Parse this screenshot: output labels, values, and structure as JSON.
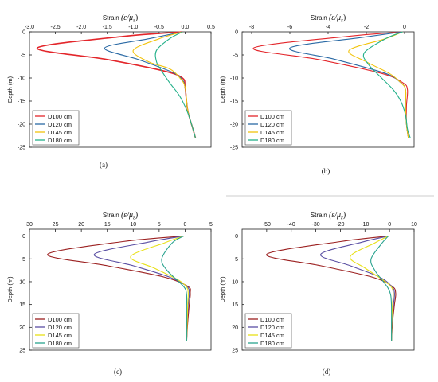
{
  "figure": {
    "captions": [
      "(a)",
      "(b)",
      "(c)",
      "(d)"
    ]
  },
  "chart_data": [
    {
      "type": "line",
      "panel_caption": "(a)",
      "xlabel": "Strain",
      "xlabel_math": "(ε/μ",
      "xlabel_math_sub": "ε",
      "xlabel_math_close": ")",
      "ylabel": "Depth (m)",
      "xlim": [
        -3.0,
        0.5
      ],
      "ylim": [
        0,
        -25
      ],
      "xticks": [
        "-3.0",
        "-2.5",
        "-2.0",
        "-1.5",
        "-1.0",
        "-0.5",
        "0.0",
        "0.5"
      ],
      "xtick_values": [
        -3.0,
        -2.5,
        -2.0,
        -1.5,
        -1.0,
        -0.5,
        0.0,
        0.5
      ],
      "yticks": [
        "0",
        "-5",
        "-10",
        "-15",
        "-20",
        "-25"
      ],
      "ytick_values": [
        0,
        -5,
        -10,
        -15,
        -20,
        -25
      ],
      "grid": false,
      "legend_position": "bottom-left",
      "series": [
        {
          "name": "D100 cm",
          "color": "#e3262b",
          "x": [
            -0.05,
            -1.2,
            -2.85,
            -1.5,
            -0.4,
            -0.05,
            0.0,
            0.05,
            0.15,
            0.2
          ],
          "y": [
            0,
            -1.0,
            -3.5,
            -6.0,
            -8.5,
            -10.0,
            -12.0,
            -17.0,
            -21.0,
            -23.0
          ]
        },
        {
          "name": "D120 cm",
          "color": "#2b6aa5",
          "x": [
            -0.05,
            -0.7,
            -1.55,
            -0.9,
            -0.3,
            -0.08,
            0.0,
            0.05,
            0.15,
            0.2
          ],
          "y": [
            0,
            -1.5,
            -3.5,
            -6.0,
            -8.5,
            -10.0,
            -12.0,
            -17.0,
            -21.0,
            -23.0
          ]
        },
        {
          "name": "D145 cm",
          "color": "#f2c40e",
          "x": [
            -0.05,
            -0.5,
            -1.0,
            -0.7,
            -0.3,
            -0.1,
            0.0,
            0.05,
            0.15,
            0.2
          ],
          "y": [
            0,
            -1.5,
            -4.0,
            -6.5,
            -8.0,
            -10.0,
            -12.0,
            -17.0,
            -21.0,
            -23.0
          ]
        },
        {
          "name": "D180 cm",
          "color": "#22b089",
          "x": [
            -0.05,
            -0.3,
            -0.55,
            -0.55,
            -0.45,
            -0.3,
            -0.1,
            0.05,
            0.15,
            0.2
          ],
          "y": [
            0,
            -1.5,
            -4.0,
            -6.5,
            -8.5,
            -11.0,
            -14.0,
            -17.5,
            -21.0,
            -23.0
          ]
        }
      ]
    },
    {
      "type": "line",
      "panel_caption": "(b)",
      "xlabel": "Strain",
      "xlabel_math": "(ε/μ",
      "xlabel_math_sub": "ε",
      "xlabel_math_close": ")",
      "ylabel": "Depth (m)",
      "xlim": [
        -8.5,
        0.5
      ],
      "ylim": [
        0,
        -25
      ],
      "xticks": [
        "-8",
        "-6",
        "-4",
        "-2",
        "0"
      ],
      "xtick_values": [
        -8,
        -6,
        -4,
        -2,
        0
      ],
      "yticks": [
        "0",
        "-5",
        "-10",
        "-15",
        "-20",
        "-25"
      ],
      "ytick_values": [
        0,
        -5,
        -10,
        -15,
        -20,
        -25
      ],
      "grid": false,
      "legend_position": "bottom-left",
      "series": [
        {
          "name": "D100 cm",
          "color": "#e3262b",
          "x": [
            -0.1,
            -3.0,
            -7.9,
            -4.5,
            -1.2,
            -0.1,
            0.15,
            0.1,
            0.1,
            0.2
          ],
          "y": [
            0,
            -1.0,
            -3.5,
            -6.0,
            -9.0,
            -11.0,
            -12.5,
            -16.0,
            -20.0,
            -23.0
          ]
        },
        {
          "name": "D120 cm",
          "color": "#2b6aa5",
          "x": [
            -0.1,
            -2.2,
            -6.0,
            -3.6,
            -1.0,
            -0.2,
            0.05,
            0.05,
            0.1,
            0.2
          ],
          "y": [
            0,
            -1.2,
            -3.5,
            -6.0,
            -9.0,
            -11.0,
            -12.5,
            -16.0,
            -20.0,
            -23.0
          ]
        },
        {
          "name": "D145 cm",
          "color": "#f2c40e",
          "x": [
            -0.1,
            -1.0,
            -2.9,
            -2.0,
            -0.8,
            -0.2,
            0.05,
            0.05,
            0.1,
            0.2
          ],
          "y": [
            0,
            -1.5,
            -4.0,
            -6.5,
            -9.0,
            -11.0,
            -12.5,
            -16.0,
            -20.0,
            -23.0
          ]
        },
        {
          "name": "D180 cm",
          "color": "#22b089",
          "x": [
            -0.1,
            -1.0,
            -2.1,
            -1.9,
            -1.2,
            -0.6,
            -0.2,
            0.05,
            0.15,
            0.3
          ],
          "y": [
            0,
            -1.5,
            -4.5,
            -7.0,
            -10.0,
            -12.5,
            -15.0,
            -18.0,
            -21.0,
            -23.0
          ]
        }
      ]
    },
    {
      "type": "line",
      "panel_caption": "(c)",
      "xlabel": "Strain",
      "xlabel_math": "(ε/μ",
      "xlabel_math_sub": "ε",
      "xlabel_math_close": ")",
      "ylabel": "Depth (m)",
      "xlim": [
        -30,
        5
      ],
      "ylim": [
        -1.5,
        25
      ],
      "xticks": [
        "30",
        "25",
        "20",
        "15",
        "10",
        "5",
        "0",
        "5"
      ],
      "xtick_values": [
        -30,
        -25,
        -20,
        -15,
        -10,
        -5,
        0,
        5
      ],
      "yticks": [
        "0",
        "5",
        "10",
        "15",
        "20",
        "25"
      ],
      "ytick_values": [
        0,
        5,
        10,
        15,
        20,
        25
      ],
      "grid": false,
      "legend_position": "bottom-left",
      "series": [
        {
          "name": "D100 cm",
          "color": "#9b1f1f",
          "x": [
            -0.3,
            -12,
            -26.5,
            -15,
            -4,
            0.5,
            1.0,
            0.8,
            0.5,
            0.3
          ],
          "y": [
            0,
            1.2,
            4.0,
            6.5,
            9.0,
            11.0,
            12.5,
            15.0,
            19.0,
            23.0
          ]
        },
        {
          "name": "D120 cm",
          "color": "#5a4fa3",
          "x": [
            -0.3,
            -7,
            -17.5,
            -10,
            -3,
            0.3,
            0.8,
            0.6,
            0.4,
            0.3
          ],
          "y": [
            0,
            1.3,
            4.0,
            6.5,
            9.0,
            11.0,
            12.5,
            15.0,
            19.0,
            23.0
          ]
        },
        {
          "name": "D145 cm",
          "color": "#e8e017",
          "x": [
            -0.3,
            -4,
            -10.5,
            -6,
            -1.5,
            0.2,
            0.6,
            0.5,
            0.4,
            0.3
          ],
          "y": [
            0,
            1.5,
            4.5,
            7.0,
            9.5,
            11.0,
            12.5,
            15.0,
            19.0,
            23.0
          ]
        },
        {
          "name": "D180 cm",
          "color": "#2aa38f",
          "x": [
            -0.3,
            -2.5,
            -4.5,
            -3.5,
            -1.2,
            0.0,
            0.3,
            0.3,
            0.3,
            0.3
          ],
          "y": [
            0,
            1.5,
            5.0,
            7.5,
            10.0,
            11.5,
            13.0,
            15.5,
            19.0,
            23.0
          ]
        }
      ]
    },
    {
      "type": "line",
      "panel_caption": "(d)",
      "xlabel": "Strain",
      "xlabel_math": "(ε/μ",
      "xlabel_math_sub": "ε",
      "xlabel_math_close": ")",
      "ylabel": "Depth (m)",
      "xlim": [
        -60,
        10
      ],
      "ylim": [
        -1.5,
        25
      ],
      "xticks": [
        "-50",
        "-40",
        "-30",
        "-20",
        "-10",
        "0",
        "10"
      ],
      "xtick_values": [
        -50,
        -40,
        -30,
        -20,
        -10,
        0,
        10
      ],
      "yticks": [
        "0",
        "5",
        "10",
        "15",
        "20",
        "25"
      ],
      "ytick_values": [
        0,
        5,
        10,
        15,
        20,
        25
      ],
      "grid": false,
      "legend_position": "bottom-left",
      "series": [
        {
          "name": "D100 cm",
          "color": "#9b1f1f",
          "x": [
            -0.5,
            -20,
            -50,
            -28,
            -7,
            1.0,
            2.5,
            2.0,
            1.2,
            0.8
          ],
          "y": [
            0,
            1.2,
            4.0,
            6.5,
            9.0,
            11.0,
            12.5,
            15.0,
            19.0,
            23.0
          ]
        },
        {
          "name": "D120 cm",
          "color": "#5a4fa3",
          "x": [
            -0.5,
            -11,
            -28,
            -16,
            -4,
            0.8,
            2.0,
            1.6,
            1.0,
            0.8
          ],
          "y": [
            0,
            1.3,
            4.0,
            6.5,
            9.0,
            11.0,
            12.5,
            15.0,
            19.0,
            23.0
          ]
        },
        {
          "name": "D145 cm",
          "color": "#e8e017",
          "x": [
            -0.5,
            -6,
            -16,
            -10,
            -3,
            0.5,
            1.5,
            1.2,
            0.9,
            0.8
          ],
          "y": [
            0,
            1.5,
            4.5,
            7.0,
            9.5,
            11.0,
            12.5,
            15.0,
            19.0,
            23.0
          ]
        },
        {
          "name": "D180 cm",
          "color": "#2aa38f",
          "x": [
            -0.5,
            -3,
            -7.5,
            -6,
            -2.5,
            -0.5,
            0.5,
            0.8,
            0.8,
            0.8
          ],
          "y": [
            0,
            1.5,
            5.0,
            7.5,
            10.0,
            11.5,
            13.0,
            15.5,
            19.0,
            23.0
          ]
        }
      ]
    }
  ]
}
